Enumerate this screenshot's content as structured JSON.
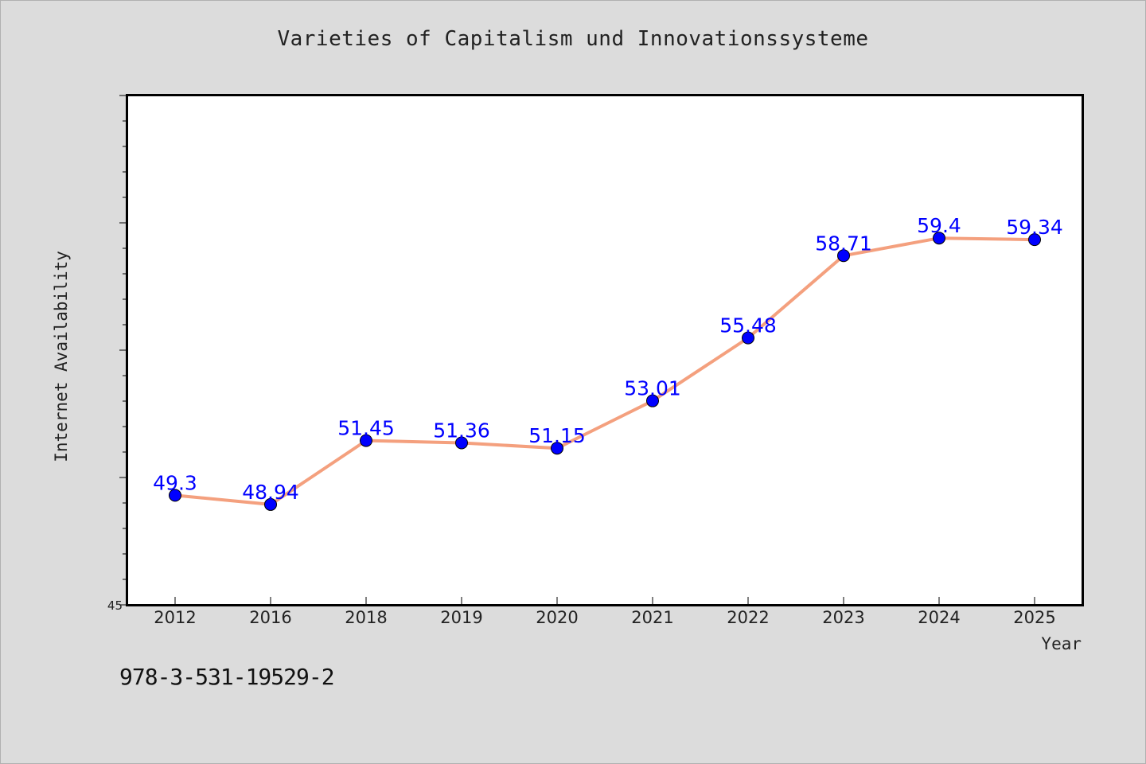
{
  "chart_data": {
    "type": "line",
    "title": "Varieties of Capitalism und Innovationssysteme",
    "xlabel": "Year",
    "ylabel": "Internet Availability",
    "categories": [
      "2012",
      "2016",
      "2018",
      "2019",
      "2020",
      "2021",
      "2022",
      "2023",
      "2024",
      "2025"
    ],
    "series": [
      {
        "values": [
          49.3,
          48.94,
          51.45,
          51.36,
          51.15,
          53.01,
          55.48,
          58.71,
          59.4,
          59.34
        ],
        "data_labels": [
          "49.3",
          "48.94",
          "51.45",
          "51.36",
          "51.15",
          "53.01",
          "55.48",
          "58.71",
          "59.4",
          "59.34"
        ]
      }
    ],
    "ylim": [
      45,
      65
    ],
    "yticks_labeled": [
      "45"
    ],
    "grid": false,
    "legend": "none",
    "line_color": "#f4a07e",
    "marker_color": "#0000ff",
    "label_color": "#0000ff"
  },
  "footer": {
    "isbn": "978-3-531-19529-2"
  }
}
